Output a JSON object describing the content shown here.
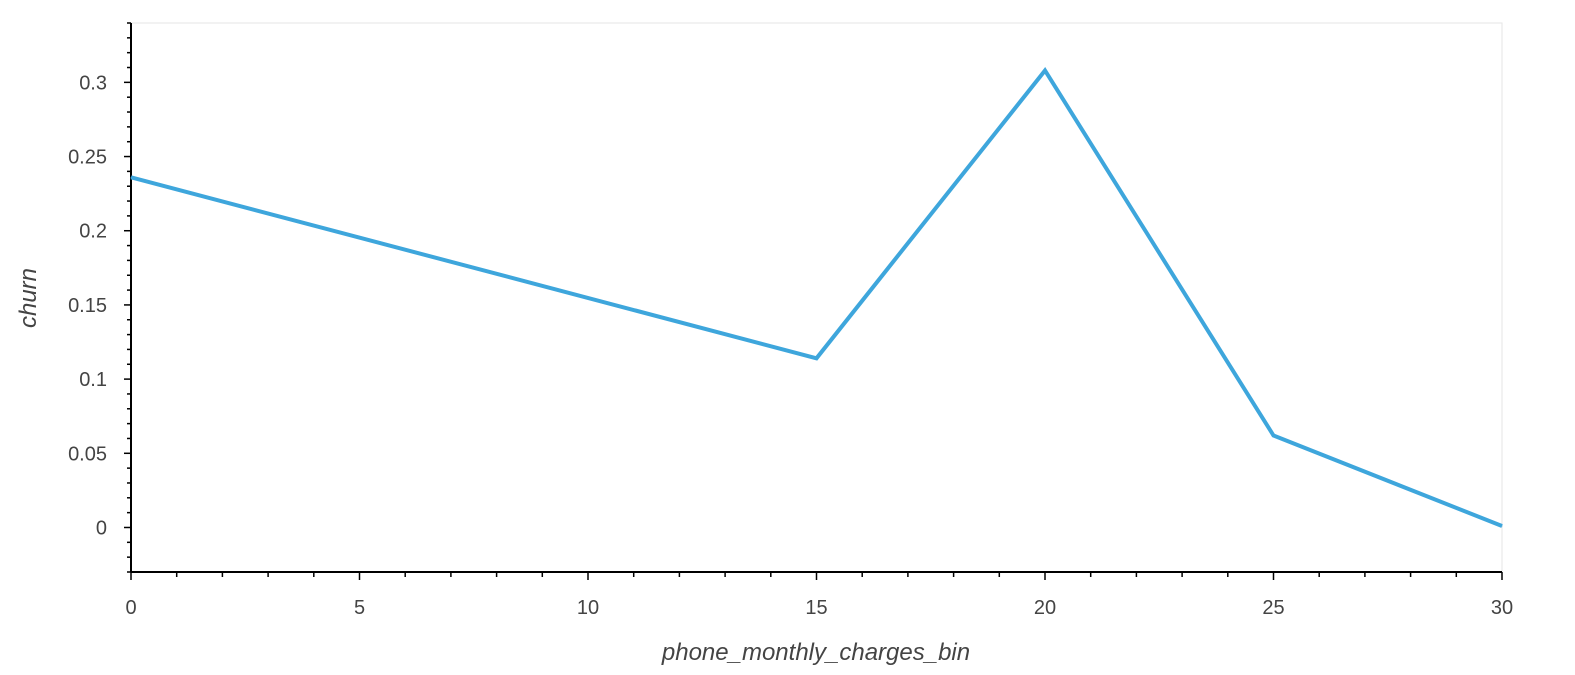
{
  "chart_data": {
    "type": "line",
    "title": "",
    "xlabel": "phone_monthly_charges_bin",
    "ylabel": "churn",
    "xlim": [
      0,
      30
    ],
    "ylim": [
      -0.03,
      0.34
    ],
    "x_ticks": [
      0,
      5,
      10,
      15,
      20,
      25,
      30
    ],
    "x_tick_labels": [
      "0",
      "5",
      "10",
      "15",
      "20",
      "25",
      "30"
    ],
    "y_ticks": [
      0,
      0.05,
      0.1,
      0.15,
      0.2,
      0.25,
      0.3
    ],
    "y_tick_labels": [
      "0",
      "0.05",
      "0.1",
      "0.15",
      "0.2",
      "0.25",
      "0.3"
    ],
    "grid": false,
    "series": [
      {
        "color": "#3ea6dc",
        "x": [
          0,
          15,
          20,
          25,
          30
        ],
        "y": [
          0.236,
          0.114,
          0.308,
          0.062,
          0.001
        ]
      }
    ]
  }
}
